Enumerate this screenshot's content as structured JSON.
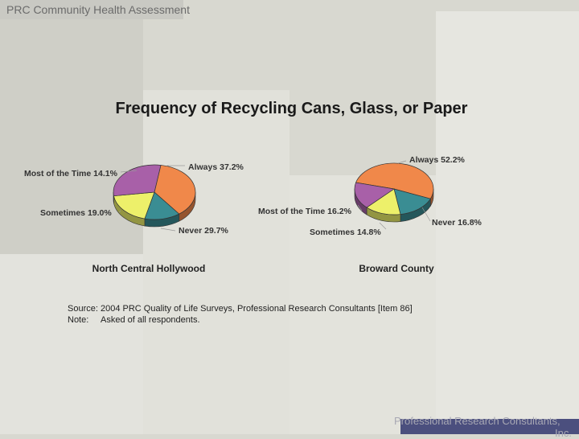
{
  "header": {
    "text": "PRC Community Health Assessment"
  },
  "footer": {
    "line1": "Professional Research Consultants,",
    "line2": "Inc."
  },
  "colors": {
    "background": "#d8d8d0",
    "always": "#f0884a",
    "most": "#3a8d93",
    "sometimes": "#edf06a",
    "never": "#a860a8",
    "footer_bar": "#4b4f7e"
  },
  "chart_data": {
    "type": "pie",
    "title": "Frequency of Recycling Cans, Glass, or Paper",
    "categories": [
      "Always",
      "Most of the Time",
      "Sometimes",
      "Never"
    ],
    "series": [
      {
        "name": "North Central Hollywood",
        "values": [
          37.2,
          14.1,
          19.0,
          29.7
        ],
        "labels": [
          "Always  37.2%",
          "Most of the Time  14.1%",
          "Sometimes  19.0%",
          "Never  29.7%"
        ]
      },
      {
        "name": "Broward County",
        "values": [
          52.2,
          16.2,
          14.8,
          16.8
        ],
        "labels": [
          "Always  52.2%",
          "Most of the Time  16.2%",
          "Sometimes  14.8%",
          "Never  16.8%"
        ]
      }
    ]
  },
  "source": {
    "source_label": "Source:",
    "source_text": "2004 PRC Quality of Life Surveys, Professional Research Consultants [Item 86]",
    "note_label": "Note:",
    "note_text": "Asked of all respondents."
  }
}
